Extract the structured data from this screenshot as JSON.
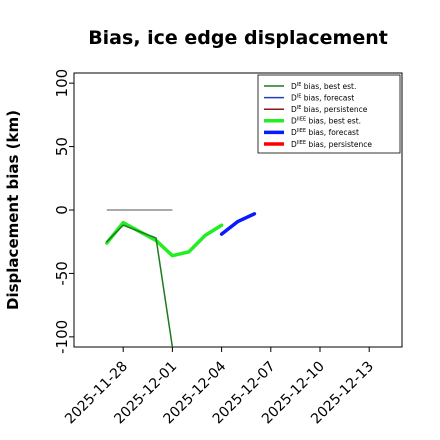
{
  "chart_data": {
    "type": "line",
    "title": "Bias, ice edge displacement",
    "xlabel": "",
    "ylabel": "Displacement bias (km)",
    "xlim": [
      "2025-11-25",
      "2025-12-15"
    ],
    "ylim": [
      -108,
      108
    ],
    "yticks": [
      100,
      50,
      0,
      -50,
      -100
    ],
    "xticks": [
      {
        "date": "2025-11-28",
        "label": "2025-11-28",
        "color": "#000000"
      },
      {
        "date": "2025-12-01",
        "label": "2025-12-01",
        "color": "#000000"
      },
      {
        "date": "2025-12-04",
        "label": "2025-12-04",
        "color": "#1a8a1a"
      },
      {
        "date": "2025-12-07",
        "label": "2025-12-07",
        "color": "#000000"
      },
      {
        "date": "2025-12-10",
        "label": "2025-12-10",
        "color": "#000000"
      },
      {
        "date": "2025-12-13",
        "label": "2025-12-13",
        "color": "#000000"
      }
    ],
    "grid": false,
    "legend_position": "top-right",
    "series": [
      {
        "name": "D^IE bias, best est.",
        "label_base": "D",
        "label_sup": "IE",
        "label_rest": " bias, best est.",
        "color": "#1f7a1f",
        "width": "thin",
        "points": [
          [
            "2025-11-27",
            -25
          ],
          [
            "2025-11-28",
            -12
          ],
          [
            "2025-11-30",
            -22
          ],
          [
            "2025-12-01",
            -108
          ]
        ]
      },
      {
        "name": "D^IE bias, forecast",
        "label_base": "D",
        "label_sup": "IE",
        "label_rest": " bias, forecast",
        "color": "#1f3fbf",
        "width": "thin",
        "points": []
      },
      {
        "name": "D^IE bias, persistence",
        "label_base": "D",
        "label_sup": "IE",
        "label_rest": " bias, persistence",
        "color": "#8b1a1a",
        "width": "thin",
        "points": []
      },
      {
        "name": "D^IIEE bias, best est.",
        "label_base": "D",
        "label_sup": "IIEE",
        "label_rest": " bias, best est.",
        "color": "#22ee22",
        "width": "thick",
        "points": [
          [
            "2025-11-27",
            -26
          ],
          [
            "2025-11-28",
            -10
          ],
          [
            "2025-11-30",
            -24
          ],
          [
            "2025-12-01",
            -36
          ],
          [
            "2025-12-02",
            -33
          ],
          [
            "2025-12-03",
            -20
          ],
          [
            "2025-12-04",
            -12
          ]
        ]
      },
      {
        "name": "D^IIEE bias, forecast",
        "label_base": "D",
        "label_sup": "IIEE",
        "label_rest": " bias, forecast",
        "color": "#0a1aff",
        "width": "thick",
        "points": [
          [
            "2025-12-04",
            -19
          ],
          [
            "2025-12-05",
            -9
          ],
          [
            "2025-12-06",
            -3
          ]
        ]
      },
      {
        "name": "D^IIEE bias, persistence",
        "label_base": "D",
        "label_sup": "IIEE",
        "label_rest": " bias, persistence",
        "color": "#ff0000",
        "width": "thick",
        "points": []
      }
    ],
    "reference_line": {
      "color": "#777777",
      "points": [
        [
          "2025-11-27",
          0
        ],
        [
          "2025-12-01",
          0
        ]
      ]
    }
  }
}
